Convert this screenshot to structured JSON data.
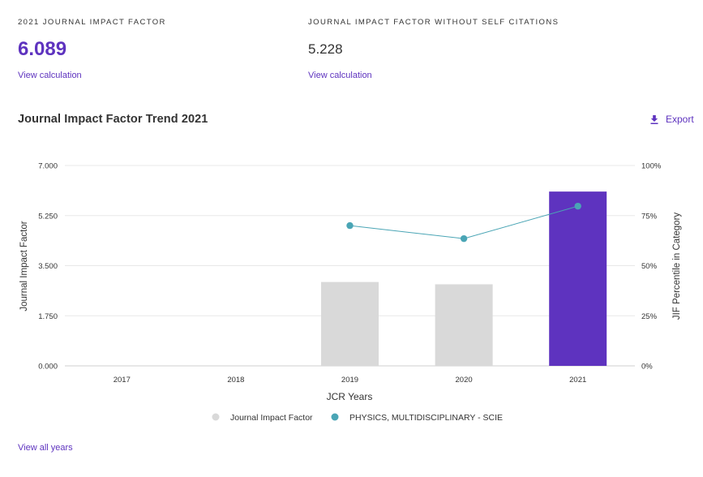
{
  "metrics": {
    "jif": {
      "label": "2021 JOURNAL IMPACT FACTOR",
      "value": "6.089",
      "link": "View calculation"
    },
    "jif_no_self": {
      "label": "JOURNAL IMPACT FACTOR WITHOUT SELF CITATIONS",
      "value": "5.228",
      "link": "View calculation"
    }
  },
  "trend": {
    "title": "Journal Impact Factor Trend 2021",
    "export_label": "Export",
    "export_icon": "download-icon"
  },
  "colors": {
    "accent": "#5e33bf",
    "bar_past": "#d9d9d9",
    "bar_current": "#5e33bf",
    "percentile_line": "#4aa5b5"
  },
  "chart_data": {
    "type": "bar",
    "categories": [
      "2017",
      "2018",
      "2019",
      "2020",
      "2021"
    ],
    "series": [
      {
        "name": "Journal Impact Factor",
        "values": [
          null,
          null,
          2.93,
          2.85,
          6.089
        ],
        "axis": "left"
      },
      {
        "name": "PHYSICS, MULTIDISCIPLINARY - SCIE",
        "type": "line",
        "values": [
          null,
          null,
          70,
          63.5,
          79.7
        ],
        "axis": "right"
      }
    ],
    "xlabel": "JCR Years",
    "ylabel": "Journal Impact Factor",
    "y2label": "JIF Percentile in Category",
    "ylim": [
      0,
      7
    ],
    "y2lim": [
      0,
      100
    ],
    "yticks": [
      "0.000",
      "1.750",
      "3.500",
      "5.250",
      "7.000"
    ],
    "y2ticks": [
      "0%",
      "25%",
      "50%",
      "75%",
      "100%"
    ],
    "grid": true,
    "legend_position": "bottom"
  },
  "footer": {
    "view_all": "View all years"
  }
}
